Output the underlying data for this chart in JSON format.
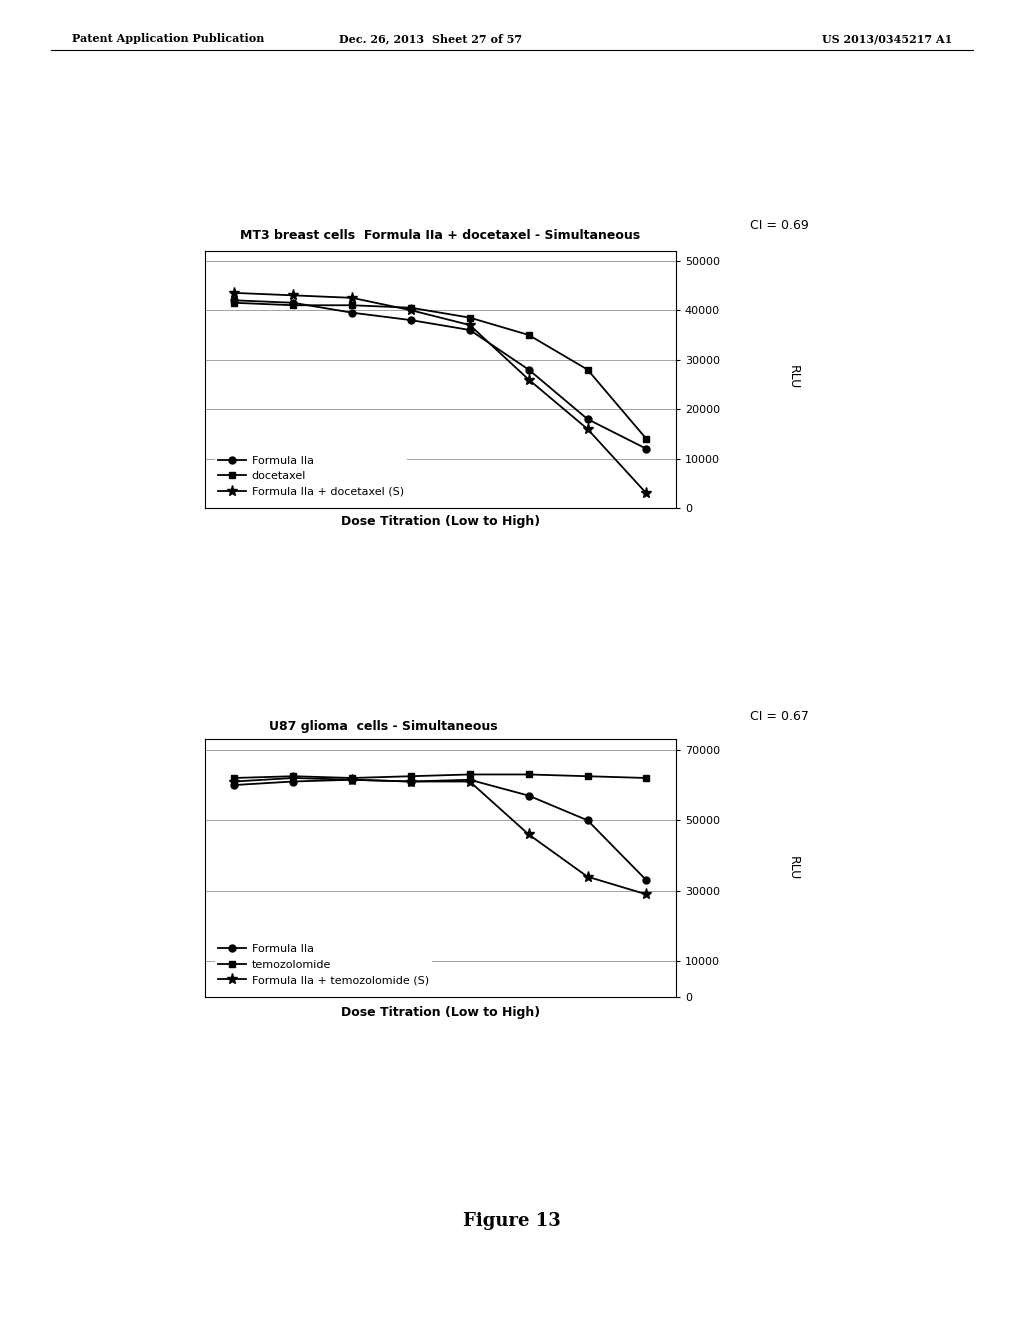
{
  "header_left": "Patent Application Publication",
  "header_mid": "Dec. 26, 2013  Sheet 27 of 57",
  "header_right": "US 2013/0345217 A1",
  "figure_label": "Figure 13",
  "plot1": {
    "ci_text": "CI = 0.69",
    "title": "MT3 breast cells  Formula IIa + docetaxel - Simultaneous",
    "xlabel": "Dose Titration (Low to High)",
    "ylabel": "RLU",
    "yticks": [
      0,
      10000,
      20000,
      30000,
      40000,
      50000
    ],
    "ylim": [
      0,
      52000
    ],
    "series": [
      {
        "label": "Formula IIa",
        "marker": "o",
        "marker_size": 5,
        "x": [
          1,
          2,
          3,
          4,
          5,
          6,
          7,
          8
        ],
        "y": [
          42000,
          41500,
          39500,
          38000,
          36000,
          28000,
          18000,
          12000
        ]
      },
      {
        "label": "docetaxel",
        "marker": "s",
        "marker_size": 5,
        "x": [
          1,
          2,
          3,
          4,
          5,
          6,
          7,
          8
        ],
        "y": [
          41500,
          41000,
          41000,
          40500,
          38500,
          35000,
          28000,
          14000
        ]
      },
      {
        "label": "Formula IIa + docetaxel (S)",
        "marker": "*",
        "marker_size": 8,
        "x": [
          1,
          2,
          3,
          4,
          5,
          6,
          7,
          8
        ],
        "y": [
          43500,
          43000,
          42500,
          40000,
          37000,
          26000,
          16000,
          3000
        ]
      }
    ]
  },
  "plot2": {
    "ci_text": "CI = 0.67",
    "title": "U87 glioma  cells - Simultaneous",
    "xlabel": "Dose Titration (Low to High)",
    "ylabel": "RLU",
    "yticks": [
      0,
      10000,
      30000,
      50000,
      70000
    ],
    "ylim": [
      0,
      73000
    ],
    "series": [
      {
        "label": "Formula IIa",
        "marker": "o",
        "marker_size": 5,
        "x": [
          1,
          2,
          3,
          4,
          5,
          6,
          7,
          8
        ],
        "y": [
          60000,
          61000,
          61500,
          61000,
          61500,
          57000,
          50000,
          33000
        ]
      },
      {
        "label": "temozolomide",
        "marker": "s",
        "marker_size": 5,
        "x": [
          1,
          2,
          3,
          4,
          5,
          6,
          7,
          8
        ],
        "y": [
          62000,
          62500,
          62000,
          62500,
          63000,
          63000,
          62500,
          62000
        ]
      },
      {
        "label": "Formula IIa + temozolomide (S)",
        "marker": "*",
        "marker_size": 8,
        "x": [
          1,
          2,
          3,
          4,
          5,
          6,
          7,
          8
        ],
        "y": [
          61000,
          62000,
          61500,
          61000,
          61000,
          46000,
          34000,
          29000
        ]
      }
    ]
  },
  "line_color": "#000000",
  "bg_color": "#ffffff",
  "font_size_title": 9,
  "font_size_header": 8,
  "font_size_axis_label": 9,
  "font_size_tick": 8,
  "font_size_legend": 8,
  "font_size_ci": 9,
  "font_size_figure": 13
}
